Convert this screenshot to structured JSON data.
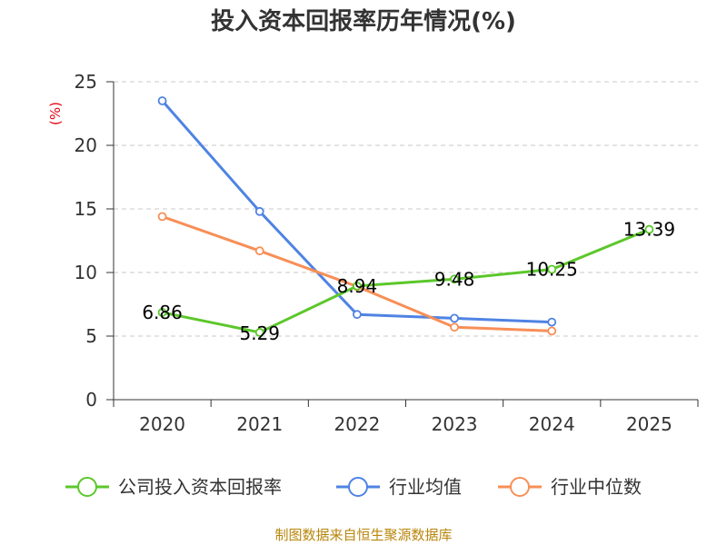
{
  "chart_data": {
    "type": "line",
    "title": "投入资本回报率历年情况(%)",
    "ylabel": "(%)",
    "ylim": [
      0,
      25
    ],
    "yticks": [
      0,
      5,
      10,
      15,
      20,
      25
    ],
    "categories": [
      "2020",
      "2021",
      "2022",
      "2023",
      "2024",
      "2025"
    ],
    "grid": true,
    "legend_position": "bottom",
    "series": [
      {
        "name": "公司投入资本回报率",
        "color": "#5cc72b",
        "values": [
          6.86,
          5.29,
          8.94,
          9.48,
          10.25,
          13.39
        ],
        "labels": [
          "6.86",
          "5.29",
          "8.94",
          "9.48",
          "10.25",
          "13.39"
        ]
      },
      {
        "name": "行业均值",
        "color": "#4f83e3",
        "values": [
          23.5,
          14.8,
          6.7,
          6.4,
          6.1,
          null
        ]
      },
      {
        "name": "行业中位数",
        "color": "#f78f57",
        "values": [
          14.4,
          11.7,
          8.9,
          5.7,
          5.4,
          null
        ]
      }
    ],
    "source": "制图数据来自恒生聚源数据库"
  }
}
